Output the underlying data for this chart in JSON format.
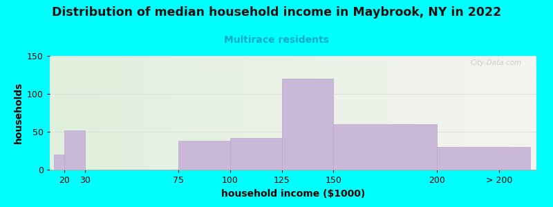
{
  "title": "Distribution of median household income in Maybrook, NY in 2022",
  "subtitle": "Multirace residents",
  "xlabel": "household income ($1000)",
  "ylabel": "households",
  "background_color": "#00FFFF",
  "bar_color": "#c9b8d8",
  "bar_edge_color": "#b8a8c8",
  "title_fontsize": 12.5,
  "subtitle_fontsize": 10,
  "subtitle_color": "#00aacc",
  "xlabel_fontsize": 10,
  "ylabel_fontsize": 10,
  "tick_positions": [
    20,
    30,
    75,
    100,
    125,
    150,
    200,
    230
  ],
  "tick_labels": [
    "20",
    "30",
    "75",
    "100",
    "125",
    "150",
    "200",
    "> 200"
  ],
  "bar_left_edges": [
    15,
    20,
    30,
    75,
    100,
    125,
    150,
    200
  ],
  "bar_right_edges": [
    20,
    30,
    75,
    100,
    125,
    150,
    200,
    245
  ],
  "bar_heights": [
    20,
    52,
    0,
    38,
    42,
    120,
    60,
    30
  ],
  "ylim": [
    0,
    150
  ],
  "yticks": [
    0,
    50,
    100,
    150
  ],
  "watermark": "City-Data.com",
  "grid_color": "#e0e0e0"
}
